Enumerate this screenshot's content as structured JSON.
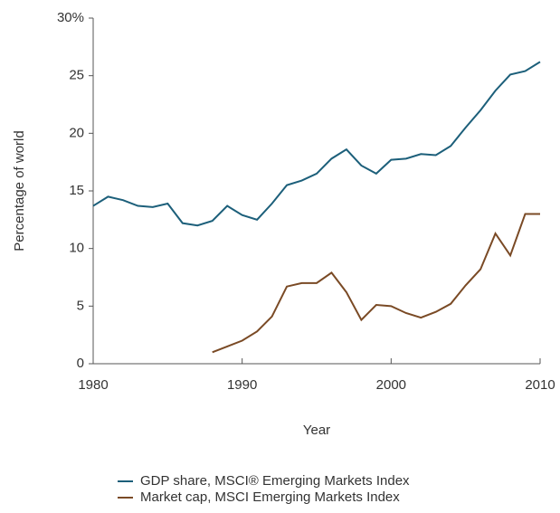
{
  "chart_data": {
    "type": "line",
    "x_label": "Year",
    "y_label": "Percentage of world",
    "x": [
      1980,
      1981,
      1982,
      1983,
      1984,
      1985,
      1986,
      1987,
      1988,
      1989,
      1990,
      1991,
      1992,
      1993,
      1994,
      1995,
      1996,
      1997,
      1998,
      1999,
      2000,
      2001,
      2002,
      2003,
      2004,
      2005,
      2006,
      2007,
      2008,
      2009,
      2010
    ],
    "series": [
      {
        "name": "GDP share, MSCI® Emerging Markets Index",
        "color": "#1c5f7a",
        "values": [
          13.7,
          14.5,
          14.2,
          13.7,
          13.6,
          13.9,
          12.2,
          12.0,
          12.4,
          13.7,
          12.9,
          12.5,
          13.9,
          15.5,
          15.9,
          16.5,
          17.8,
          18.6,
          17.2,
          16.5,
          17.7,
          17.8,
          18.2,
          18.1,
          18.9,
          20.5,
          22.0,
          23.7,
          25.1,
          25.4,
          26.2
        ]
      },
      {
        "name": "Market cap, MSCI Emerging Markets Index",
        "color": "#7a4a25",
        "values": [
          null,
          null,
          null,
          null,
          null,
          null,
          null,
          null,
          1.0,
          1.5,
          2.0,
          2.8,
          4.1,
          6.7,
          7.0,
          7.0,
          7.9,
          6.2,
          3.8,
          5.1,
          5.0,
          4.4,
          4.0,
          4.5,
          5.2,
          6.8,
          8.2,
          11.3,
          9.4,
          13.0,
          13.0
        ]
      }
    ],
    "xlim": [
      1980,
      2010
    ],
    "xticks": [
      1980,
      1990,
      2000,
      2010
    ],
    "ylim": [
      0,
      30
    ],
    "yticks": [
      0,
      5,
      10,
      15,
      20,
      25,
      {
        "value": 30,
        "label": "30%"
      }
    ],
    "grid": false
  }
}
